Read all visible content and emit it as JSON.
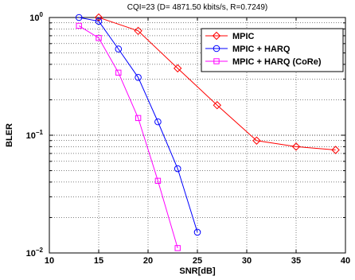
{
  "chart_data": {
    "type": "line",
    "title": "CQI=23 (D= 4871.50 kbits/s, R=0.7249)",
    "xlabel": "SNR[dB]",
    "ylabel": "BLER",
    "xlim": [
      10,
      40
    ],
    "ylim": [
      0.01,
      1
    ],
    "yscale": "log",
    "grid": true,
    "legend_position": "top-right",
    "x_ticks": [
      "10",
      "15",
      "20",
      "25",
      "30",
      "35",
      "40"
    ],
    "y_ticks": [
      {
        "base": "10",
        "exp": "0"
      },
      {
        "base": "10",
        "exp": "−1"
      },
      {
        "base": "10",
        "exp": "−2"
      }
    ],
    "series": [
      {
        "name": "MPIC",
        "color": "#ff0000",
        "marker": "diamond",
        "x": [
          15,
          19,
          23,
          27,
          31,
          35,
          39
        ],
        "y": [
          1.0,
          0.77,
          0.37,
          0.18,
          0.09,
          0.08,
          0.075
        ]
      },
      {
        "name": "MPIC + HARQ",
        "color": "#0000ff",
        "marker": "circle",
        "x": [
          13,
          15,
          17,
          19,
          21,
          23,
          25
        ],
        "y": [
          1.0,
          0.93,
          0.54,
          0.31,
          0.13,
          0.052,
          0.015
        ]
      },
      {
        "name": "MPIC + HARQ (CoRe)",
        "color": "#ff00ff",
        "marker": "square",
        "x": [
          13,
          15,
          17,
          19,
          21,
          23
        ],
        "y": [
          0.85,
          0.67,
          0.34,
          0.14,
          0.041,
          0.011
        ]
      }
    ]
  }
}
